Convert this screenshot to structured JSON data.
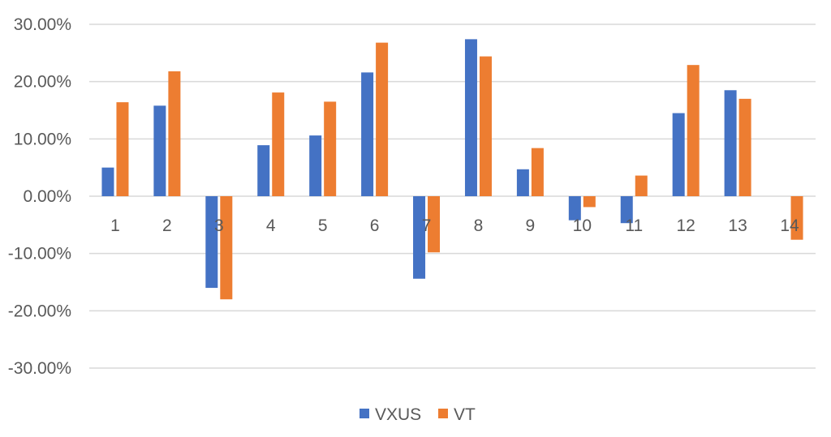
{
  "chart_data": {
    "type": "bar",
    "categories": [
      "1",
      "2",
      "3",
      "4",
      "5",
      "6",
      "7",
      "8",
      "9",
      "10",
      "11",
      "12",
      "13",
      "14"
    ],
    "series": [
      {
        "name": "VXUS",
        "color": "#4472c4",
        "values": [
          5.0,
          15.8,
          -16.0,
          8.9,
          10.6,
          21.6,
          -14.4,
          27.4,
          4.7,
          -4.2,
          -4.7,
          14.5,
          18.5,
          0.0
        ]
      },
      {
        "name": "VT",
        "color": "#ed7d31",
        "values": [
          16.4,
          21.8,
          -18.0,
          18.1,
          16.5,
          26.8,
          -9.8,
          24.4,
          8.4,
          -1.9,
          3.6,
          22.9,
          17.0,
          -7.6
        ]
      }
    ],
    "y_ticks": [
      "30.00%",
      "20.00%",
      "10.00%",
      "0.00%",
      "-10.00%",
      "-20.00%",
      "-30.00%"
    ],
    "ylim": [
      -30,
      30
    ],
    "grid": true,
    "legend_position": "bottom"
  }
}
